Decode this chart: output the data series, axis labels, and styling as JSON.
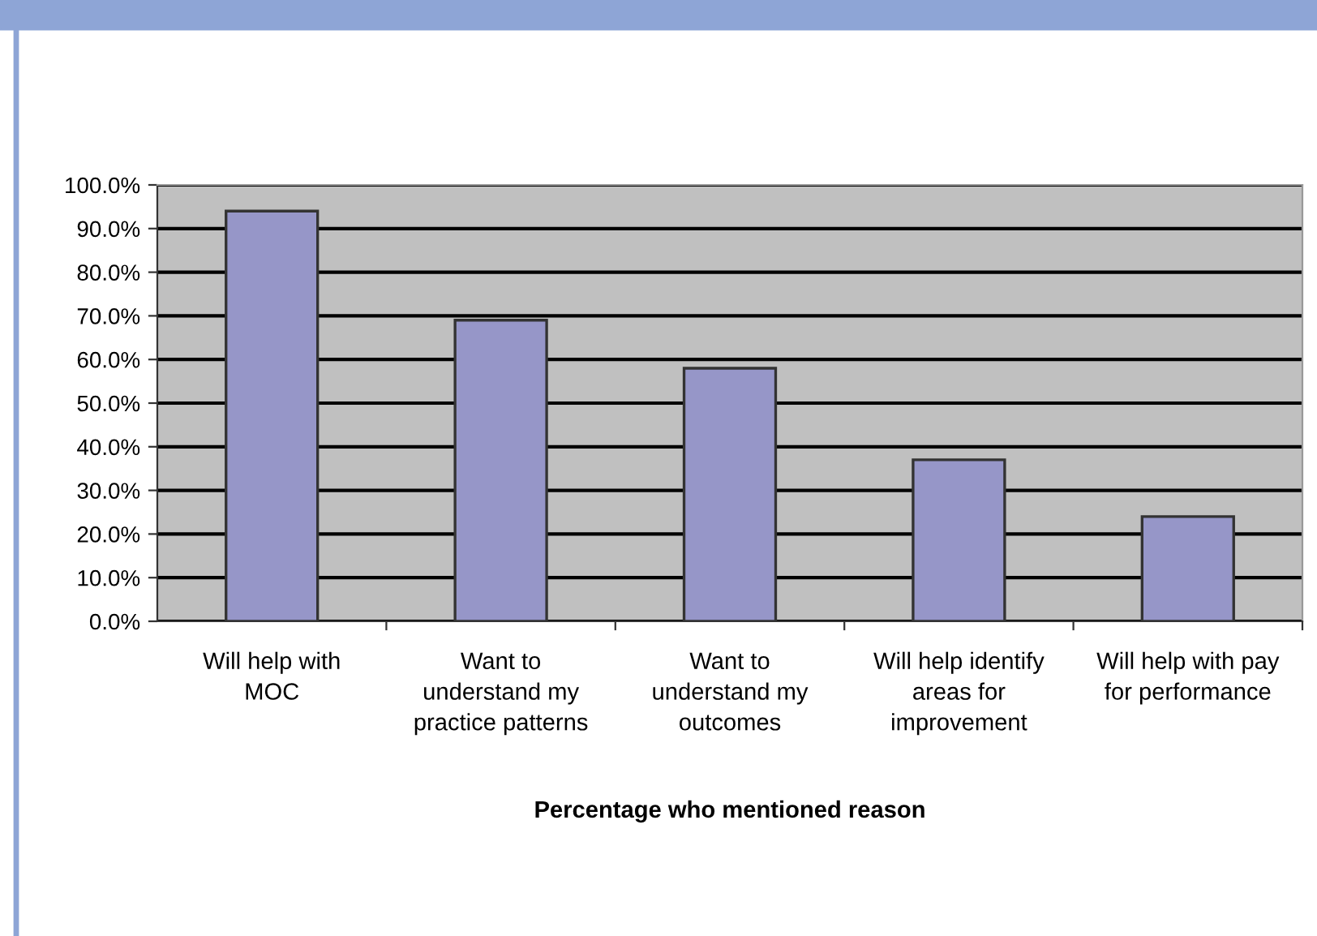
{
  "chart_data": {
    "type": "bar",
    "xlabel": "Percentage who mentioned reason",
    "categories": [
      "Will help with\nMOC",
      "Want to\nunderstand my\npractice patterns",
      "Want to\nunderstand my\noutcomes",
      "Will help identify\nareas for\nimprovement",
      "Will help with pay\nfor performance"
    ],
    "values": [
      94,
      69,
      58,
      37,
      24
    ],
    "color": "#9696c8",
    "ylim": [
      0,
      100
    ],
    "yticks": [
      {
        "value": 0,
        "label": "0.0%"
      },
      {
        "value": 10,
        "label": "10.0%"
      },
      {
        "value": 20,
        "label": "20.0%"
      },
      {
        "value": 30,
        "label": "30.0%"
      },
      {
        "value": 40,
        "label": "40.0%"
      },
      {
        "value": 50,
        "label": "50.0%"
      },
      {
        "value": 60,
        "label": "60.0%"
      },
      {
        "value": 70,
        "label": "70.0%"
      },
      {
        "value": 80,
        "label": "80.0%"
      },
      {
        "value": 90,
        "label": "90.0%"
      },
      {
        "value": 100,
        "label": "100.0%"
      }
    ],
    "grid": "y",
    "legend": false
  }
}
